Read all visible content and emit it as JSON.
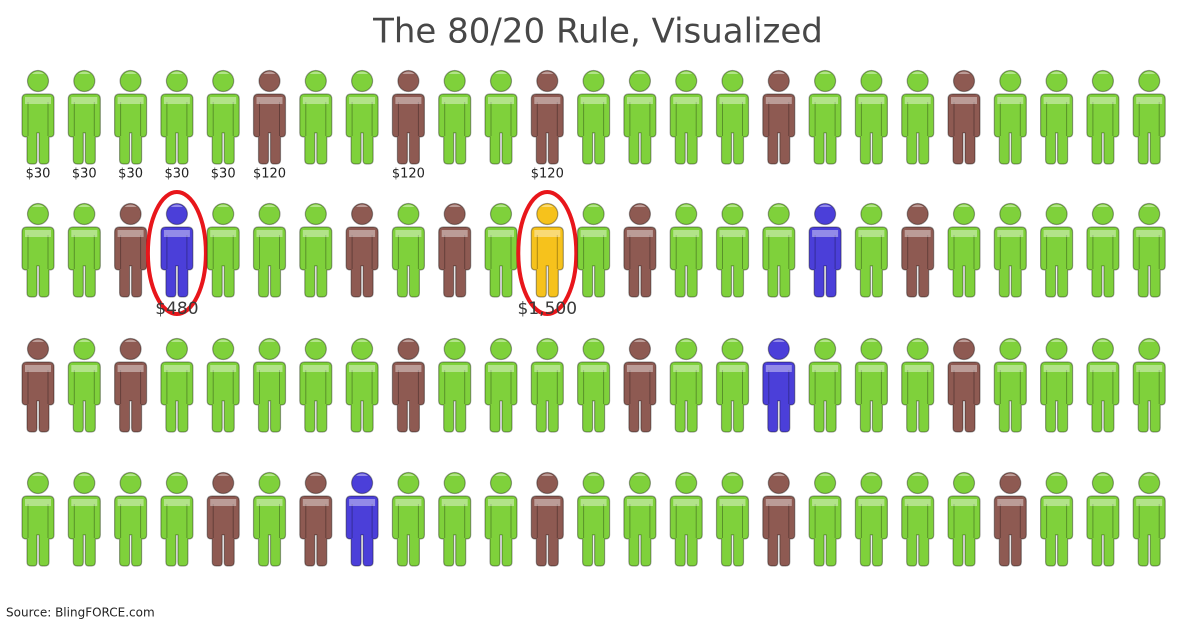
{
  "title": "The 80/20 Rule, Visualized",
  "source": "Source: BlingFORCE.com",
  "rows": [
    [
      {
        "color": "#7fd13b",
        "label": "$30"
      },
      {
        "color": "#7fd13b",
        "label": "$30"
      },
      {
        "color": "#7fd13b",
        "label": "$30"
      },
      {
        "color": "#7fd13b",
        "label": "$30"
      },
      {
        "color": "#7fd13b",
        "label": "$30"
      },
      {
        "color": "#8e5a52",
        "label": "$120"
      },
      {
        "color": "#7fd13b"
      },
      {
        "color": "#7fd13b"
      },
      {
        "color": "#8e5a52",
        "label": "$120"
      },
      {
        "color": "#7fd13b"
      },
      {
        "color": "#7fd13b"
      },
      {
        "color": "#8e5a52",
        "label": "$120"
      },
      {
        "color": "#7fd13b"
      },
      {
        "color": "#7fd13b"
      },
      {
        "color": "#7fd13b"
      },
      {
        "color": "#7fd13b"
      },
      {
        "color": "#8e5a52"
      },
      {
        "color": "#7fd13b"
      },
      {
        "color": "#7fd13b"
      },
      {
        "color": "#7fd13b"
      },
      {
        "color": "#8e5a52"
      },
      {
        "color": "#7fd13b"
      },
      {
        "color": "#7fd13b"
      },
      {
        "color": "#7fd13b"
      },
      {
        "color": "#7fd13b"
      }
    ],
    [
      {
        "color": "#7fd13b"
      },
      {
        "color": "#7fd13b"
      },
      {
        "color": "#8e5a52"
      },
      {
        "color": "#4b3fd9",
        "label": "$480",
        "circled": true
      },
      {
        "color": "#7fd13b"
      },
      {
        "color": "#7fd13b"
      },
      {
        "color": "#7fd13b"
      },
      {
        "color": "#8e5a52"
      },
      {
        "color": "#7fd13b"
      },
      {
        "color": "#8e5a52"
      },
      {
        "color": "#7fd13b"
      },
      {
        "color": "#f6c21c",
        "label": "$1,500",
        "circled": true
      },
      {
        "color": "#7fd13b"
      },
      {
        "color": "#8e5a52"
      },
      {
        "color": "#7fd13b"
      },
      {
        "color": "#7fd13b"
      },
      {
        "color": "#7fd13b"
      },
      {
        "color": "#4b3fd9"
      },
      {
        "color": "#7fd13b"
      },
      {
        "color": "#8e5a52"
      },
      {
        "color": "#7fd13b"
      },
      {
        "color": "#7fd13b"
      },
      {
        "color": "#7fd13b"
      },
      {
        "color": "#7fd13b"
      },
      {
        "color": "#7fd13b"
      }
    ],
    [
      {
        "color": "#8e5a52"
      },
      {
        "color": "#7fd13b"
      },
      {
        "color": "#8e5a52"
      },
      {
        "color": "#7fd13b"
      },
      {
        "color": "#7fd13b"
      },
      {
        "color": "#7fd13b"
      },
      {
        "color": "#7fd13b"
      },
      {
        "color": "#7fd13b"
      },
      {
        "color": "#8e5a52"
      },
      {
        "color": "#7fd13b"
      },
      {
        "color": "#7fd13b"
      },
      {
        "color": "#7fd13b"
      },
      {
        "color": "#7fd13b"
      },
      {
        "color": "#8e5a52"
      },
      {
        "color": "#7fd13b"
      },
      {
        "color": "#7fd13b"
      },
      {
        "color": "#4b3fd9"
      },
      {
        "color": "#7fd13b"
      },
      {
        "color": "#7fd13b"
      },
      {
        "color": "#7fd13b"
      },
      {
        "color": "#8e5a52"
      },
      {
        "color": "#7fd13b"
      },
      {
        "color": "#7fd13b"
      },
      {
        "color": "#7fd13b"
      },
      {
        "color": "#7fd13b"
      }
    ],
    [
      {
        "color": "#7fd13b"
      },
      {
        "color": "#7fd13b"
      },
      {
        "color": "#7fd13b"
      },
      {
        "color": "#7fd13b"
      },
      {
        "color": "#8e5a52"
      },
      {
        "color": "#7fd13b"
      },
      {
        "color": "#8e5a52"
      },
      {
        "color": "#4b3fd9"
      },
      {
        "color": "#7fd13b"
      },
      {
        "color": "#7fd13b"
      },
      {
        "color": "#7fd13b"
      },
      {
        "color": "#8e5a52"
      },
      {
        "color": "#7fd13b"
      },
      {
        "color": "#7fd13b"
      },
      {
        "color": "#7fd13b"
      },
      {
        "color": "#7fd13b"
      },
      {
        "color": "#8e5a52"
      },
      {
        "color": "#7fd13b"
      },
      {
        "color": "#7fd13b"
      },
      {
        "color": "#7fd13b"
      },
      {
        "color": "#7fd13b"
      },
      {
        "color": "#8e5a52"
      },
      {
        "color": "#7fd13b"
      },
      {
        "color": "#7fd13b"
      },
      {
        "color": "#7fd13b"
      }
    ]
  ]
}
